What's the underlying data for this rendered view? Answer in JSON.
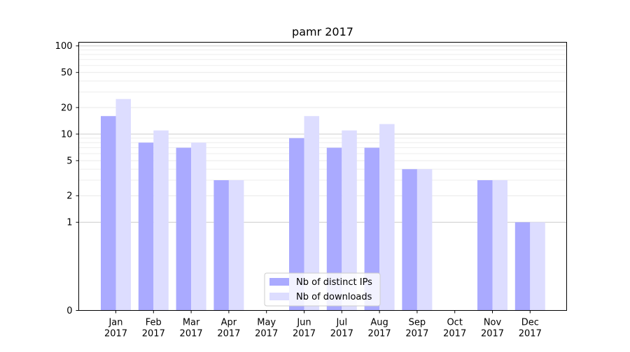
{
  "chart_data": {
    "type": "bar",
    "title": "pamr 2017",
    "xlabel": "",
    "ylabel": "",
    "yscale": "symlog",
    "ylim": [
      0,
      110
    ],
    "yticks": [
      {
        "value": 0,
        "label": "0"
      },
      {
        "value": 1,
        "label": "1"
      },
      {
        "value": 2,
        "label": "2"
      },
      {
        "value": 5,
        "label": "5"
      },
      {
        "value": 10,
        "label": "10"
      },
      {
        "value": 20,
        "label": "20"
      },
      {
        "value": 50,
        "label": "50"
      },
      {
        "value": 100,
        "label": "100"
      }
    ],
    "minor_gridlines": [
      3,
      4,
      6,
      7,
      8,
      9,
      30,
      40,
      60,
      70,
      80,
      90
    ],
    "major_gridlines": [
      1,
      10,
      100
    ],
    "grid": true,
    "legend_position": "bottom-center",
    "categories": [
      "Jan",
      "Feb",
      "Mar",
      "Apr",
      "May",
      "Jun",
      "Jul",
      "Aug",
      "Sep",
      "Oct",
      "Nov",
      "Dec"
    ],
    "category_year": "2017",
    "series": [
      {
        "name": "Nb of distinct IPs",
        "color": "#aaaaff",
        "values": [
          16,
          8,
          7,
          3,
          0,
          9,
          7,
          7,
          4,
          0,
          3,
          1
        ]
      },
      {
        "name": "Nb of downloads",
        "color": "#ddddff",
        "values": [
          25,
          11,
          8,
          3,
          0,
          16,
          11,
          13,
          4,
          0,
          3,
          1
        ]
      }
    ]
  }
}
